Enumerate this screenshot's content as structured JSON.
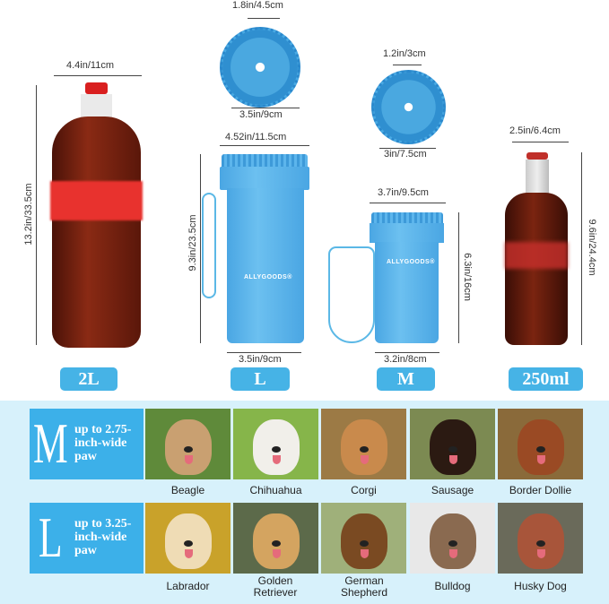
{
  "products": {
    "bottle_2l": {
      "label": "2L",
      "width": "4.4in/11cm",
      "height": "13.2in/33.5cm"
    },
    "cup_l": {
      "label": "L",
      "top_width": "4.52in/11.5cm",
      "height": "9.3in/23.5cm",
      "bottom_width": "3.5in/9cm",
      "brush_inner": "1.8in/4.5cm",
      "brush_outer": "3.5in/9cm",
      "brand": "ALLYGOODS®"
    },
    "cup_m": {
      "label": "M",
      "top_width": "3.7in/9.5cm",
      "height": "6.3in/16cm",
      "bottom_width": "3.2in/8cm",
      "brush_inner": "1.2in/3cm",
      "brush_outer": "3in/7.5cm",
      "brand": "ALLYGOODS®"
    },
    "bottle_250": {
      "label": "250ml",
      "width": "2.5in/6.4cm",
      "height": "9.6in/24.4cm"
    }
  },
  "colors": {
    "accent": "#3cb0e9",
    "panel": "#d7f1fb",
    "pill": "#46b3e6"
  },
  "sizes": [
    {
      "letter": "M",
      "desc": "up to 2.75-inch-wide paw",
      "dogs": [
        "Beagle",
        "Chihuahua",
        "Corgi",
        "Sausage",
        "Border Dollie"
      ]
    },
    {
      "letter": "L",
      "desc": "up to 3.25-inch-wide paw",
      "dogs": [
        "Labrador",
        "Golden Retriever",
        "German Shepherd",
        "Bulldog",
        "Husky Dog"
      ]
    }
  ]
}
